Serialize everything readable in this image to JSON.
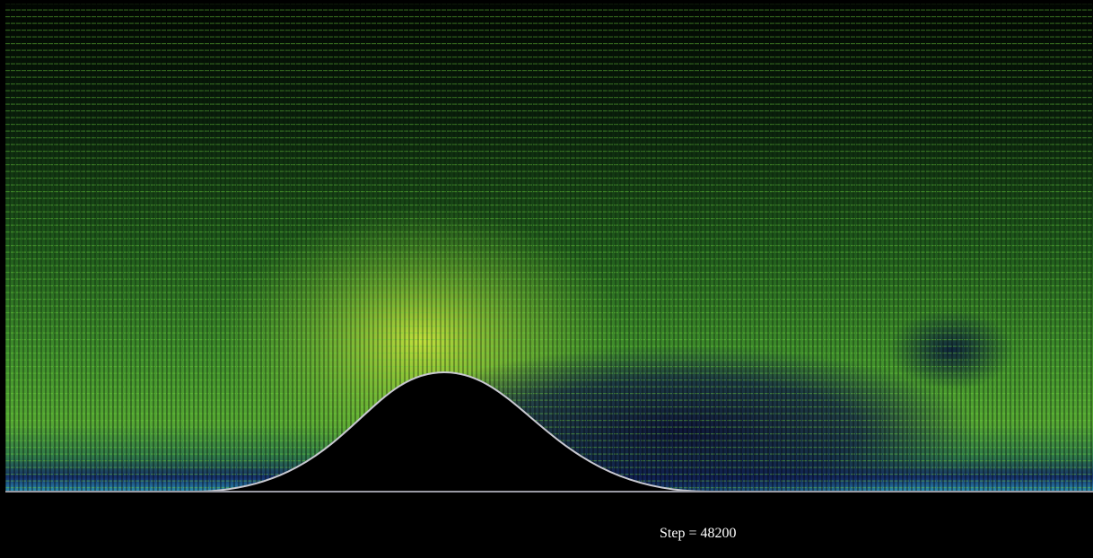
{
  "step_label": "Step = 48200"
}
